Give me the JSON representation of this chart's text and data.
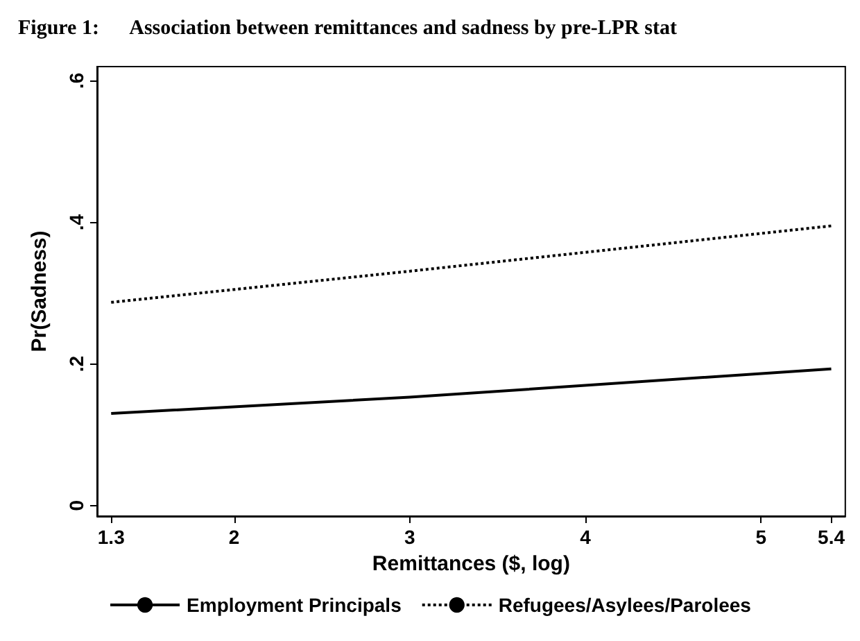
{
  "chart_data": {
    "type": "line",
    "title": "Figure 1:      Association between remittances and sadness by pre-LPR stat",
    "xlabel": "Remittances ($, log)",
    "ylabel": "Pr(Sadness)",
    "x": [
      1.3,
      3,
      5.4
    ],
    "series": [
      {
        "name": "Employment Principals",
        "color": "#000000",
        "values": [
          0.13,
          0.153,
          0.193
        ],
        "line_style": "solid"
      },
      {
        "name": "Refugees/Asylees/Parolees",
        "color": "#000000",
        "values": [
          0.287,
          0.331,
          0.395
        ],
        "line_style": "dotted"
      }
    ],
    "xlim": [
      1.22,
      5.48
    ],
    "xticks": [
      1.3,
      2,
      3,
      4,
      5,
      5.4
    ],
    "ylim": [
      -0.015,
      0.62
    ],
    "yticks": [
      0,
      {
        "value": 0.2,
        "label": ".2"
      },
      {
        "value": 0.4,
        "label": ".4"
      },
      {
        "value": 0.6,
        "label": ".6"
      }
    ],
    "grid": false,
    "legend": "bottom",
    "marker": "none"
  }
}
